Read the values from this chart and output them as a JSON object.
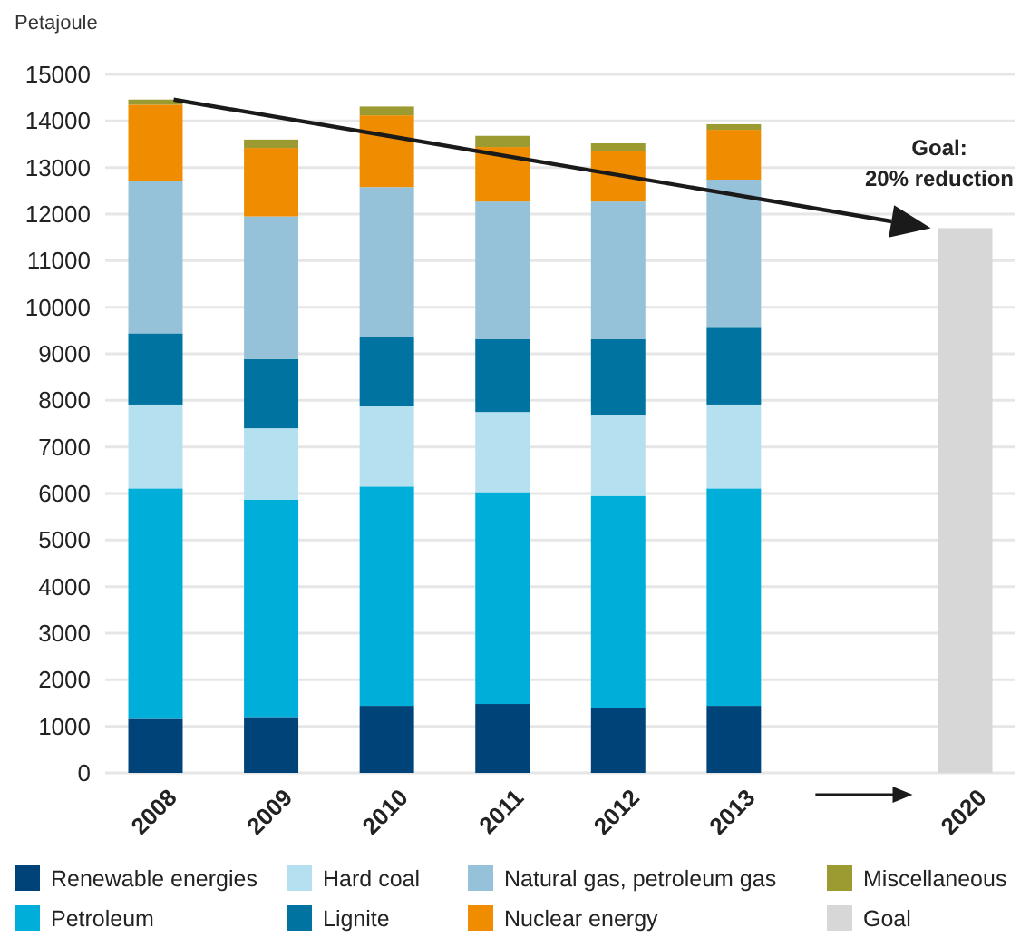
{
  "chart_data": {
    "type": "bar",
    "stacked": true,
    "ylabel": "Petajoule",
    "categories": [
      "2008",
      "2009",
      "2010",
      "2011",
      "2012",
      "2013",
      null,
      "2020"
    ],
    "series": [
      {
        "name": "Renewable energies",
        "color": "#004378",
        "values": [
          1160,
          1200,
          1440,
          1480,
          1400,
          1440,
          null,
          null
        ]
      },
      {
        "name": "Petroleum",
        "color": "#00afd9",
        "values": [
          4950,
          4670,
          4710,
          4550,
          4550,
          4670,
          null,
          null
        ]
      },
      {
        "name": "Hard coal",
        "color": "#b5e0f0",
        "values": [
          1800,
          1530,
          1720,
          1720,
          1730,
          1800,
          null,
          null
        ]
      },
      {
        "name": "Lignite",
        "color": "#0073a0",
        "values": [
          1530,
          1490,
          1490,
          1570,
          1640,
          1650,
          null,
          null
        ]
      },
      {
        "name": "Natural gas, petroleum gas",
        "color": "#96c2d9",
        "values": [
          3270,
          3060,
          3220,
          2950,
          2950,
          3180,
          null,
          null
        ]
      },
      {
        "name": "Nuclear energy",
        "color": "#f08c00",
        "values": [
          1640,
          1470,
          1540,
          1170,
          1090,
          1070,
          null,
          null
        ]
      },
      {
        "name": "Miscellaneous",
        "color": "#9b9b32",
        "values": [
          110,
          180,
          190,
          240,
          160,
          120,
          null,
          null
        ]
      },
      {
        "name": "Goal",
        "color": "#d7d7d7",
        "values": [
          null,
          null,
          null,
          null,
          null,
          null,
          null,
          11700
        ]
      }
    ],
    "ylim": [
      0,
      15000
    ],
    "yticks": [
      0,
      1000,
      2000,
      3000,
      4000,
      5000,
      6000,
      7000,
      8000,
      9000,
      10000,
      11000,
      12000,
      13000,
      14000,
      15000
    ],
    "grid": "y",
    "legend": "bottom",
    "annotations": [
      {
        "text": "Goal:\n20% reduction",
        "x": "2020",
        "y": 11700
      }
    ]
  }
}
